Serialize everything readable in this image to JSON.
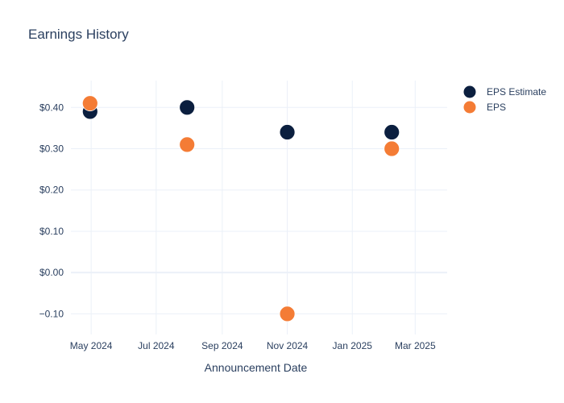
{
  "chart_data": {
    "type": "scatter",
    "title": "Earnings History",
    "xlabel": "Announcement Date",
    "ylabel": "",
    "x_axis_type": "date",
    "xlim": [
      "2024-04-12",
      "2025-03-31"
    ],
    "ylim": [
      -0.15,
      0.465
    ],
    "x_ticks": [
      {
        "date": "2024-05-01",
        "label": "May 2024"
      },
      {
        "date": "2024-07-01",
        "label": "Jul 2024"
      },
      {
        "date": "2024-09-01",
        "label": "Sep 2024"
      },
      {
        "date": "2024-11-01",
        "label": "Nov 2024"
      },
      {
        "date": "2025-01-01",
        "label": "Jan 2025"
      },
      {
        "date": "2025-03-01",
        "label": "Mar 2025"
      }
    ],
    "y_ticks": [
      {
        "value": 0.4,
        "label": "$0.40"
      },
      {
        "value": 0.3,
        "label": "$0.30"
      },
      {
        "value": 0.2,
        "label": "$0.20"
      },
      {
        "value": 0.1,
        "label": "$0.10"
      },
      {
        "value": 0.0,
        "label": "$0.00"
      },
      {
        "value": -0.1,
        "label": "−0.10"
      }
    ],
    "grid": true,
    "legend_position": "top-right",
    "series": [
      {
        "name": "EPS Estimate",
        "color": "#0b1f3f",
        "points": [
          {
            "x": "2024-04-30",
            "y": 0.39
          },
          {
            "x": "2024-07-30",
            "y": 0.4
          },
          {
            "x": "2024-11-01",
            "y": 0.34
          },
          {
            "x": "2025-02-07",
            "y": 0.34
          }
        ]
      },
      {
        "name": "EPS",
        "color": "#f47c35",
        "points": [
          {
            "x": "2024-04-30",
            "y": 0.41
          },
          {
            "x": "2024-07-30",
            "y": 0.31
          },
          {
            "x": "2024-11-01",
            "y": -0.1
          },
          {
            "x": "2025-02-07",
            "y": 0.3
          }
        ]
      }
    ]
  }
}
